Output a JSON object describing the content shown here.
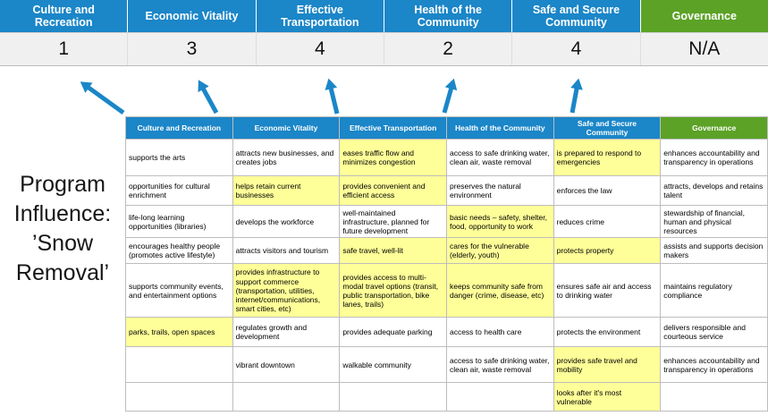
{
  "title": "Program Influence: ’Snow Removal’",
  "colors": {
    "pillar_blue": "#1b86c8",
    "governance_green": "#5ba226",
    "highlight_yellow": "#ffff99",
    "score_band_gray": "#f0f0f0",
    "arrow_blue": "#1b86c8"
  },
  "pillars": [
    {
      "name": "Culture and Recreation",
      "score": "1"
    },
    {
      "name": "Economic Vitality",
      "score": "3"
    },
    {
      "name": "Effective Transportation",
      "score": "4"
    },
    {
      "name": "Health of the Community",
      "score": "2"
    },
    {
      "name": "Safe and Secure Community",
      "score": "4"
    },
    {
      "name": "Governance",
      "score": "N/A"
    }
  ],
  "matrix": {
    "rows": [
      {
        "cells": [
          {
            "text": "supports the arts",
            "highlight": false
          },
          {
            "text": "attracts new businesses, and creates jobs",
            "highlight": false
          },
          {
            "text": "eases traffic flow and minimizes congestion",
            "highlight": true
          },
          {
            "text": "access to safe drinking water, clean air, waste removal",
            "highlight": false
          },
          {
            "text": "is prepared to respond to emergencies",
            "highlight": true
          },
          {
            "text": "enhances accountability and transparency in operations",
            "highlight": false
          }
        ]
      },
      {
        "cells": [
          {
            "text": "opportunities for cultural enrichment",
            "highlight": false
          },
          {
            "text": "helps retain current businesses",
            "highlight": true
          },
          {
            "text": "provides convenient and efficient access",
            "highlight": true
          },
          {
            "text": "preserves the natural environment",
            "highlight": false
          },
          {
            "text": "enforces the law",
            "highlight": false
          },
          {
            "text": "attracts, develops and retains talent",
            "highlight": false
          }
        ]
      },
      {
        "cells": [
          {
            "text": "life-long learning opportunities (libraries)",
            "highlight": false
          },
          {
            "text": "develops the workforce",
            "highlight": false
          },
          {
            "text": "well-maintained infrastructure, planned for future development",
            "highlight": false
          },
          {
            "text": "basic needs – safety, shelter, food, opportunity to work",
            "highlight": true
          },
          {
            "text": "reduces crime",
            "highlight": false
          },
          {
            "text": "stewardship of financial, human and physical resources",
            "highlight": false
          }
        ]
      },
      {
        "cells": [
          {
            "text": "encourages healthy people (promotes active lifestyle)",
            "highlight": false
          },
          {
            "text": "attracts visitors and tourism",
            "highlight": false
          },
          {
            "text": "safe travel, well-lit",
            "highlight": true
          },
          {
            "text": "cares for the vulnerable (elderly, youth)",
            "highlight": true
          },
          {
            "text": "protects property",
            "highlight": true
          },
          {
            "text": "assists and supports decision makers",
            "highlight": false
          }
        ]
      },
      {
        "cells": [
          {
            "text": "supports community events, and entertainment options",
            "highlight": false
          },
          {
            "text": "provides infrastructure to support commerce (transportation, utilities, internet/communications, smart cities, etc)",
            "highlight": true
          },
          {
            "text": "provides access to multi-modal travel options (transit, public transportation, bike lanes, trails)",
            "highlight": true
          },
          {
            "text": "keeps community safe from danger (crime, disease, etc)",
            "highlight": true
          },
          {
            "text": "ensures safe air and access to drinking water",
            "highlight": false
          },
          {
            "text": "maintains regulatory compliance",
            "highlight": false
          }
        ]
      },
      {
        "cells": [
          {
            "text": "parks, trails, open spaces",
            "highlight": true
          },
          {
            "text": "regulates growth and development",
            "highlight": false
          },
          {
            "text": "provides adequate parking",
            "highlight": false
          },
          {
            "text": "access to health care",
            "highlight": false
          },
          {
            "text": "protects the environment",
            "highlight": false
          },
          {
            "text": "delivers responsible and courteous service",
            "highlight": false
          }
        ]
      },
      {
        "cells": [
          {
            "text": "",
            "highlight": false
          },
          {
            "text": "vibrant downtown",
            "highlight": false
          },
          {
            "text": "walkable community",
            "highlight": false
          },
          {
            "text": "access to safe drinking water, clean air, waste removal",
            "highlight": false
          },
          {
            "text": "provides safe travel and mobility",
            "highlight": true
          },
          {
            "text": "enhances accountability and transparency in operations",
            "highlight": false
          }
        ]
      },
      {
        "cells": [
          {
            "text": "",
            "highlight": false
          },
          {
            "text": "",
            "highlight": false
          },
          {
            "text": "",
            "highlight": false
          },
          {
            "text": "",
            "highlight": false
          },
          {
            "text": "looks after it's most vulnerable",
            "highlight": true
          },
          {
            "text": "",
            "highlight": false
          }
        ]
      }
    ]
  }
}
